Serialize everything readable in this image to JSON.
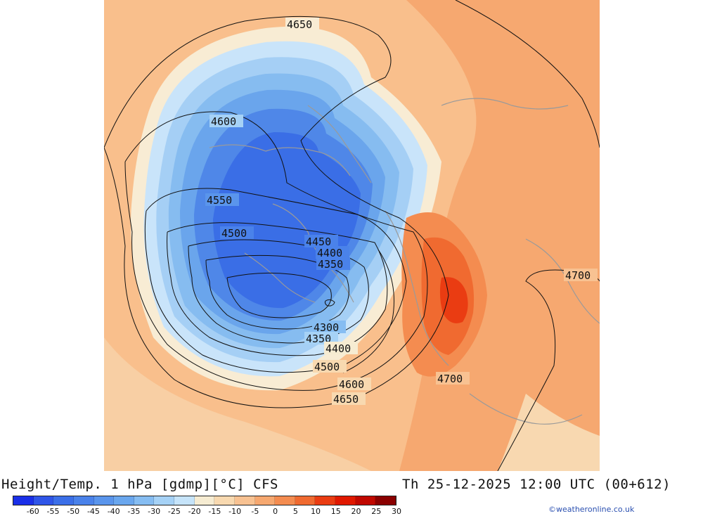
{
  "title": "Height/Temp. 1 hPa [gdmp][°C] CFS",
  "datetime": "Th 25-12-2025 12:00 UTC (00+612)",
  "credit": "©weatheronline.co.uk",
  "colorbar": {
    "ticks": [
      "-60",
      "-55",
      "-50",
      "-45",
      "-40",
      "-35",
      "-30",
      "-25",
      "-20",
      "-15",
      "-10",
      "-5",
      "0",
      "5",
      "10",
      "15",
      "20",
      "25",
      "30"
    ],
    "colors": [
      "#1a2fe8",
      "#2f55e8",
      "#3b6fe8",
      "#4a82ea",
      "#5a95ec",
      "#6aa7ee",
      "#86bdf2",
      "#a6d2f6",
      "#c6e4fa",
      "#f6ecd2",
      "#f8d9b0",
      "#f8c292",
      "#f6a870",
      "#f48c50",
      "#f06a30",
      "#ea3c12",
      "#e01800",
      "#c00800",
      "#8a0000"
    ]
  },
  "contours": [
    {
      "label": "4650"
    },
    {
      "label": "4600"
    },
    {
      "label": "4550"
    },
    {
      "label": "4500"
    },
    {
      "label": "4450"
    },
    {
      "label": "4400"
    },
    {
      "label": "4350"
    },
    {
      "label": "4300"
    },
    {
      "label": "4350"
    },
    {
      "label": "4400"
    },
    {
      "label": "4500"
    },
    {
      "label": "4600"
    },
    {
      "label": "4650"
    },
    {
      "label": "4700"
    },
    {
      "label": "4700"
    }
  ]
}
